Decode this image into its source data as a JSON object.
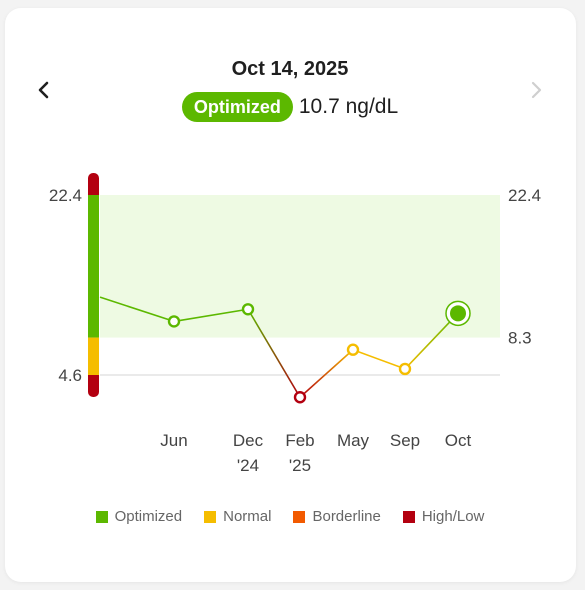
{
  "header": {
    "date": "Oct 14, 2025",
    "status_label": "Optimized",
    "value_text": "10.7 ng/dL",
    "prev_icon": "chevron-left-icon",
    "next_icon": "chevron-right-icon"
  },
  "colors": {
    "optimized": "#5cb800",
    "normal": "#f5bd00",
    "borderline": "#f25a00",
    "high_low": "#b30010",
    "band_fill": "#eefae3"
  },
  "legend": [
    {
      "label": "Optimized",
      "color": "#5cb800"
    },
    {
      "label": "Normal",
      "color": "#f5bd00"
    },
    {
      "label": "Borderline",
      "color": "#f25a00"
    },
    {
      "label": "High/Low",
      "color": "#b30010"
    }
  ],
  "chart_data": {
    "type": "line",
    "y_left_ticks": [
      {
        "value": 22.4,
        "label": "22.4"
      },
      {
        "value": 4.6,
        "label": "4.6"
      }
    ],
    "y_right_ticks": [
      {
        "value": 22.4,
        "label": "22.4"
      },
      {
        "value": 8.3,
        "label": "8.3"
      }
    ],
    "optimal_range": [
      8.3,
      22.4
    ],
    "normal_range": [
      4.6,
      8.3
    ],
    "ylim": [
      2.4,
      24.6
    ],
    "start_value": 12.3,
    "points": [
      {
        "label": "Jun",
        "label2": "",
        "value": 9.9,
        "status": "optimized",
        "current": false
      },
      {
        "label": "Dec",
        "label2": "'24",
        "value": 11.1,
        "status": "optimized",
        "current": false
      },
      {
        "label": "Feb",
        "label2": "'25",
        "value": 2.4,
        "status": "high_low",
        "current": false
      },
      {
        "label": "May",
        "label2": "",
        "value": 7.1,
        "status": "normal",
        "current": false
      },
      {
        "label": "Sep",
        "label2": "",
        "value": 5.2,
        "status": "normal",
        "current": false
      },
      {
        "label": "Oct",
        "label2": "",
        "value": 10.7,
        "status": "optimized",
        "current": true
      }
    ]
  }
}
